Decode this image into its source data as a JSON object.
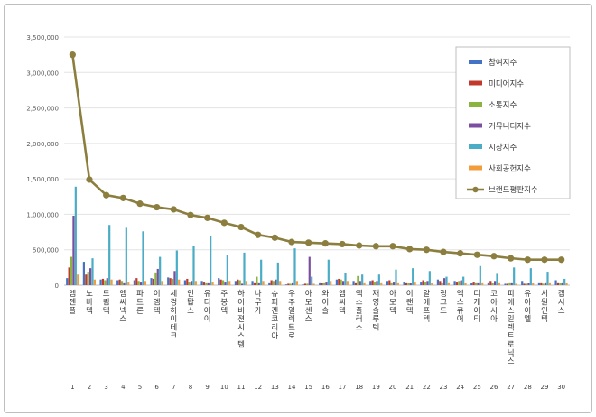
{
  "chart_data": {
    "type": "bar",
    "title": "",
    "xlabel": "",
    "ylabel": "",
    "ylim": [
      0,
      3500000
    ],
    "yticks": [
      0,
      500000,
      1000000,
      1500000,
      2000000,
      2500000,
      3000000,
      3500000
    ],
    "ytick_labels": [
      "0",
      "500,000",
      "1,000,000",
      "1,500,000",
      "2,000,000",
      "2,500,000",
      "3,000,000",
      "3,500,000"
    ],
    "grid": true,
    "legend_position": "top-right",
    "rank_labels": [
      "1",
      "2",
      "3",
      "4",
      "5",
      "6",
      "7",
      "8",
      "9",
      "10",
      "11",
      "12",
      "13",
      "14",
      "15",
      "16",
      "17",
      "18",
      "19",
      "20",
      "21",
      "22",
      "23",
      "24",
      "25",
      "26",
      "27",
      "28",
      "29",
      "30"
    ],
    "categories": [
      "엠젠플",
      "노바텍",
      "드림텍",
      "엠씨넥스",
      "파트론",
      "이엠텍",
      "세경하이테크",
      "인탑스",
      "유티아이",
      "주봉텍",
      "하이비젼시스템",
      "나무가",
      "슈피겐코리아",
      "우주일렉트로",
      "아모센스",
      "와이솔",
      "엠씨텍",
      "엑스플러스",
      "재영솔루텍",
      "아모텍",
      "이랜텍",
      "알에프텍",
      "링크드",
      "엑스큐어",
      "디케이티",
      "코아시아",
      "피에스일렉트로닉스",
      "유아이엘",
      "서원인텍",
      "캡시스"
    ],
    "series": [
      {
        "name": "참여지수",
        "color": "#4472c4",
        "values": [
          100000,
          330000,
          80000,
          70000,
          70000,
          100000,
          110000,
          70000,
          60000,
          100000,
          60000,
          60000,
          40000,
          10000,
          10000,
          40000,
          80000,
          60000,
          60000,
          60000,
          50000,
          50000,
          80000,
          60000,
          30000,
          40000,
          20000,
          60000,
          40000,
          70000
        ]
      },
      {
        "name": "미디어지수",
        "color": "#c0392b",
        "values": [
          250000,
          150000,
          90000,
          80000,
          100000,
          90000,
          100000,
          90000,
          50000,
          80000,
          80000,
          40000,
          70000,
          20000,
          20000,
          30000,
          90000,
          40000,
          70000,
          70000,
          40000,
          70000,
          60000,
          50000,
          50000,
          60000,
          20000,
          20000,
          40000,
          40000
        ]
      },
      {
        "name": "소통지수",
        "color": "#8ab33f",
        "values": [
          400000,
          190000,
          70000,
          60000,
          60000,
          180000,
          90000,
          50000,
          40000,
          70000,
          70000,
          120000,
          60000,
          20000,
          20000,
          40000,
          80000,
          130000,
          50000,
          40000,
          30000,
          50000,
          40000,
          60000,
          40000,
          30000,
          40000,
          20000,
          20000,
          30000
        ]
      },
      {
        "name": "커뮤니티지수",
        "color": "#7b4fa0",
        "values": [
          980000,
          240000,
          100000,
          40000,
          50000,
          230000,
          200000,
          60000,
          40000,
          50000,
          20000,
          40000,
          80000,
          40000,
          400000,
          50000,
          60000,
          60000,
          60000,
          50000,
          30000,
          60000,
          100000,
          70000,
          40000,
          60000,
          40000,
          30000,
          40000,
          40000
        ]
      },
      {
        "name": "시장지수",
        "color": "#4bacc6",
        "values": [
          1390000,
          380000,
          850000,
          810000,
          760000,
          400000,
          490000,
          550000,
          690000,
          420000,
          460000,
          360000,
          320000,
          520000,
          120000,
          360000,
          170000,
          150000,
          150000,
          220000,
          240000,
          200000,
          120000,
          120000,
          270000,
          160000,
          250000,
          240000,
          190000,
          90000
        ]
      },
      {
        "name": "사회공헌지수",
        "color": "#f39c3c",
        "values": [
          150000,
          80000,
          80000,
          50000,
          60000,
          60000,
          80000,
          60000,
          50000,
          60000,
          60000,
          60000,
          60000,
          60000,
          20000,
          60000,
          60000,
          40000,
          40000,
          40000,
          50000,
          30000,
          40000,
          30000,
          40000,
          40000,
          20000,
          30000,
          40000,
          30000
        ]
      },
      {
        "name": "브랜드평판지수",
        "color": "#8c7e3e",
        "values": [
          3250000,
          1490000,
          1270000,
          1230000,
          1150000,
          1100000,
          1070000,
          990000,
          950000,
          880000,
          820000,
          710000,
          670000,
          610000,
          600000,
          590000,
          580000,
          560000,
          550000,
          550000,
          510000,
          500000,
          470000,
          450000,
          430000,
          410000,
          380000,
          360000,
          360000,
          360000
        ]
      }
    ]
  }
}
